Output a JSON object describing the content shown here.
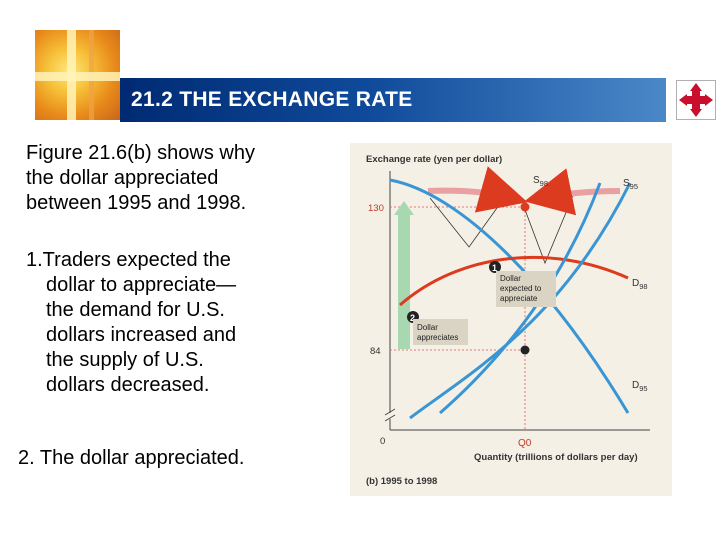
{
  "header": {
    "title": "21.2 THE EXCHANGE RATE"
  },
  "body": {
    "para1_lines": [
      "Figure 21.6(b) shows why",
      "the dollar appreciated",
      "between 1995 and 1998."
    ],
    "list1_first": "1.Traders expected the",
    "list1_rest": [
      "dollar to appreciate—",
      "the demand for U.S.",
      "dollars increased and",
      "the supply of U.S.",
      "dollars decreased."
    ],
    "list2": "2. The dollar appreciated."
  },
  "chart_data": {
    "type": "line",
    "title": "",
    "ylabel": "Exchange rate (yen per dollar)",
    "xlabel": "Quantity (trillions of dollars per day)",
    "caption": "(b) 1995 to 1998",
    "y_ticks": [
      "130",
      "84",
      "0"
    ],
    "x_ticks": [
      "Q0"
    ],
    "origin_label": "0",
    "series": [
      {
        "name": "S98",
        "label_main": "S",
        "label_sub": "98",
        "color": "#3a95d4"
      },
      {
        "name": "S95",
        "label_main": "S",
        "label_sub": "95",
        "color": "#3a95d4"
      },
      {
        "name": "D98",
        "label_main": "D",
        "label_sub": "98",
        "color": "#dd3b1f"
      },
      {
        "name": "D95",
        "label_main": "D",
        "label_sub": "95",
        "color": "#3a95d4"
      }
    ],
    "equilibria": [
      {
        "label": "D95 / S95",
        "y": 84,
        "x": "Q0"
      },
      {
        "label": "D98 / S98",
        "y": 130,
        "x": "Q0"
      }
    ],
    "annotations": [
      {
        "number": "1",
        "lines": [
          "Dollar",
          "expected to",
          "appreciate"
        ]
      },
      {
        "number": "2",
        "lines": [
          "Dollar",
          "appreciates"
        ]
      }
    ],
    "colors": {
      "demand_new": "#dd3b1f",
      "curves": "#3a95d4",
      "guide": "#e07a7a",
      "arrow_up": "#a8d8b0",
      "background": "#f4f0e6"
    }
  }
}
